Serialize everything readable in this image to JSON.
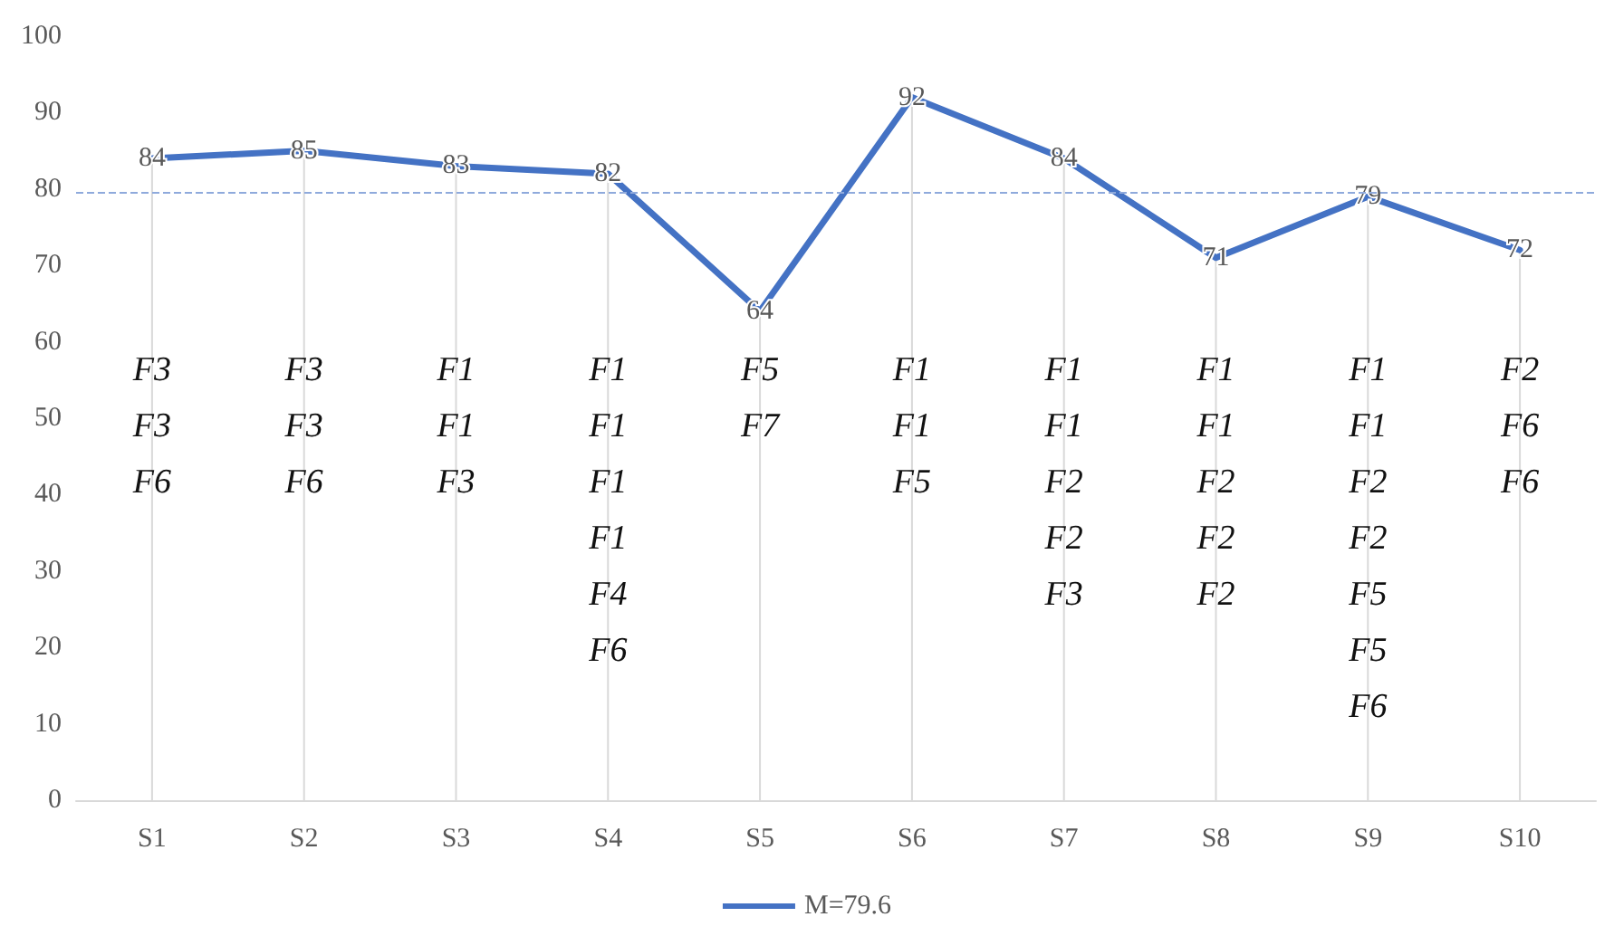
{
  "chart_data": {
    "type": "line",
    "categories": [
      "S1",
      "S2",
      "S3",
      "S4",
      "S5",
      "S6",
      "S7",
      "S8",
      "S9",
      "S10"
    ],
    "series": [
      {
        "name": "M=79.6",
        "color": "#4472c4",
        "values": [
          84,
          85,
          83,
          82,
          64,
          92,
          84,
          71,
          79,
          72
        ]
      }
    ],
    "ylim": [
      0,
      100
    ],
    "yticks": [
      0,
      10,
      20,
      30,
      40,
      50,
      60,
      70,
      80,
      90,
      100
    ],
    "grid": "x",
    "legend": "bottom",
    "marker": "none",
    "line_style": "solid",
    "data_labels": true,
    "ref_lines": [
      {
        "axis": "y",
        "value": 79.6,
        "color": "#8faadc",
        "line_style": "dashed"
      }
    ],
    "annotations": [
      "F3\nF3\nF6",
      "F3\nF3\nF6",
      "F1\nF1\nF3",
      "F1\nF1\nF1\nF1\nF4\nF6",
      "F5\nF7",
      "F1\nF1\nF5",
      "F1\nF1\nF2\nF2\nF3",
      "F1\nF1\nF2\nF2\nF2",
      "F1\nF1\nF2\nF2\nF5\nF5\nF6",
      "F2\nF6\nF6"
    ]
  }
}
